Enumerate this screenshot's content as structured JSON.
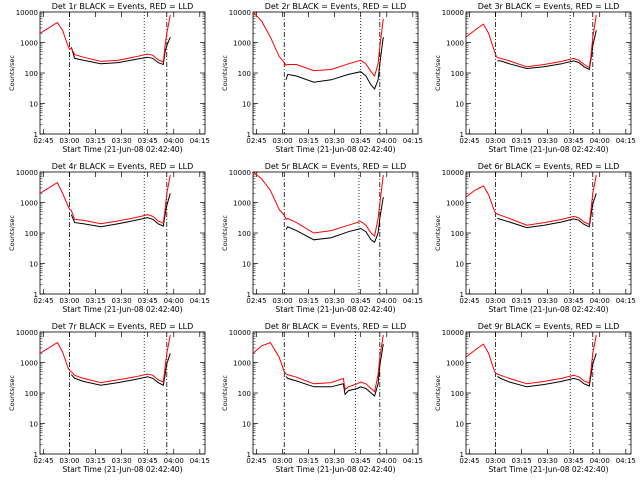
{
  "figure": {
    "xlabel": "Start Time (21-Jun-08 02:42:40)",
    "ylabel": "Counts/sec",
    "x_ticks": [
      "02:45",
      "03:00",
      "03:15",
      "03:30",
      "03:45",
      "04:00",
      "04:15"
    ],
    "y_ticks": [
      "1",
      "10",
      "100",
      "1000",
      "10000"
    ],
    "colors": {
      "events": "#000000",
      "lld": "#ff0000",
      "axes": "#000000",
      "background": "#ffffff"
    }
  },
  "chart_data": [
    {
      "type": "line",
      "title": "Det 1r BLACK = Events, RED = LLD",
      "xlabel": "Start Time (21-Jun-08 02:42:40)",
      "ylabel": "Counts/sec",
      "xlim": [
        0,
        95
      ],
      "ylim": [
        1,
        10000
      ],
      "yscale": "log",
      "x_minutes": [
        0,
        5,
        10,
        13,
        16,
        17,
        18,
        20,
        25,
        35,
        45,
        55,
        62,
        65,
        68,
        71,
        72,
        73,
        75
      ],
      "series": [
        {
          "name": "Events",
          "values": [
            null,
            null,
            null,
            null,
            null,
            null,
            700,
            300,
            260,
            200,
            220,
            280,
            330,
            300,
            220,
            190,
            500,
            800,
            1500
          ]
        },
        {
          "name": "LLD",
          "values": [
            2000,
            3000,
            4500,
            2500,
            800,
            600,
            650,
            400,
            330,
            240,
            260,
            340,
            420,
            380,
            270,
            230,
            800,
            2000,
            8000
          ]
        }
      ],
      "markers": {
        "dashdot": [
          17,
          73
        ],
        "dotted": [
          60
        ]
      }
    },
    {
      "type": "line",
      "title": "Det 2r BLACK = Events, RED = LLD",
      "xlabel": "Start Time (21-Jun-08 02:42:40)",
      "ylabel": "Counts/sec",
      "xlim": [
        0,
        95
      ],
      "ylim": [
        1,
        10000
      ],
      "yscale": "log",
      "x_minutes": [
        0,
        5,
        10,
        15,
        18,
        19,
        20,
        25,
        35,
        45,
        55,
        62,
        65,
        68,
        70,
        72,
        73,
        75
      ],
      "series": [
        {
          "name": "Events",
          "values": [
            null,
            null,
            null,
            null,
            null,
            60,
            90,
            80,
            50,
            60,
            90,
            110,
            80,
            40,
            30,
            60,
            200,
            1500
          ]
        },
        {
          "name": "LLD",
          "values": [
            10000,
            5000,
            1500,
            350,
            220,
            180,
            190,
            190,
            120,
            130,
            200,
            260,
            200,
            110,
            80,
            200,
            700,
            6000
          ]
        }
      ],
      "markers": {
        "dashdot": [
          18,
          73
        ],
        "dotted": [
          62
        ]
      }
    },
    {
      "type": "line",
      "title": "Det 3r BLACK = Events, RED = LLD",
      "xlabel": "Start Time (21-Jun-08 02:42:40)",
      "ylabel": "Counts/sec",
      "xlim": [
        0,
        95
      ],
      "ylim": [
        1,
        10000
      ],
      "yscale": "log",
      "x_minutes": [
        0,
        5,
        10,
        13,
        16,
        17,
        18,
        20,
        25,
        35,
        45,
        55,
        62,
        65,
        68,
        71,
        72,
        73,
        75
      ],
      "series": [
        {
          "name": "Events",
          "values": [
            null,
            null,
            null,
            null,
            null,
            null,
            250,
            250,
            200,
            140,
            160,
            200,
            250,
            220,
            160,
            130,
            300,
            800,
            2500
          ]
        },
        {
          "name": "LLD",
          "values": [
            1500,
            2500,
            4000,
            2000,
            600,
            400,
            320,
            300,
            250,
            160,
            190,
            240,
            300,
            260,
            190,
            150,
            400,
            1500,
            8000
          ]
        }
      ],
      "markers": {
        "dashdot": [
          17,
          73
        ],
        "dotted": [
          60
        ]
      }
    },
    {
      "type": "line",
      "title": "Det 4r BLACK = Events, RED = LLD",
      "xlabel": "Start Time (21-Jun-08 02:42:40)",
      "ylabel": "Counts/sec",
      "xlim": [
        0,
        95
      ],
      "ylim": [
        1,
        10000
      ],
      "yscale": "log",
      "x_minutes": [
        0,
        5,
        10,
        13,
        16,
        17,
        18,
        20,
        25,
        35,
        45,
        55,
        62,
        65,
        68,
        71,
        72,
        73,
        75
      ],
      "series": [
        {
          "name": "Events",
          "values": [
            null,
            null,
            null,
            null,
            null,
            null,
            400,
            220,
            200,
            160,
            200,
            260,
            320,
            280,
            200,
            170,
            400,
            800,
            2000
          ]
        },
        {
          "name": "LLD",
          "values": [
            2000,
            3000,
            4500,
            2000,
            800,
            600,
            550,
            280,
            260,
            200,
            250,
            320,
            400,
            350,
            250,
            210,
            600,
            2000,
            8000
          ]
        }
      ],
      "markers": {
        "dashdot": [
          17,
          73
        ],
        "dotted": [
          60
        ]
      }
    },
    {
      "type": "line",
      "title": "Det 5r BLACK = Events, RED = LLD",
      "xlabel": "Start Time (21-Jun-08 02:42:40)",
      "ylabel": "Counts/sec",
      "xlim": [
        0,
        95
      ],
      "ylim": [
        1,
        10000
      ],
      "yscale": "log",
      "x_minutes": [
        0,
        5,
        10,
        15,
        18,
        19,
        20,
        25,
        35,
        45,
        55,
        62,
        65,
        68,
        70,
        72,
        73,
        75
      ],
      "series": [
        {
          "name": "Events",
          "values": [
            null,
            null,
            null,
            null,
            null,
            130,
            160,
            120,
            60,
            70,
            110,
            140,
            110,
            60,
            50,
            100,
            300,
            1500
          ]
        },
        {
          "name": "LLD",
          "values": [
            10000,
            6000,
            2500,
            600,
            380,
            280,
            300,
            220,
            100,
            120,
            180,
            240,
            180,
            100,
            80,
            300,
            900,
            8000
          ]
        }
      ],
      "markers": {
        "dashdot": [
          18,
          73
        ],
        "dotted": [
          61
        ]
      }
    },
    {
      "type": "line",
      "title": "Det 6r BLACK = Events, RED = LLD",
      "xlabel": "Start Time (21-Jun-08 02:42:40)",
      "ylabel": "Counts/sec",
      "xlim": [
        0,
        95
      ],
      "ylim": [
        1,
        10000
      ],
      "yscale": "log",
      "x_minutes": [
        0,
        5,
        10,
        13,
        16,
        17,
        18,
        20,
        25,
        35,
        45,
        55,
        62,
        65,
        68,
        71,
        72,
        73,
        75
      ],
      "series": [
        {
          "name": "Events",
          "values": [
            null,
            null,
            null,
            null,
            null,
            null,
            300,
            280,
            230,
            150,
            180,
            230,
            290,
            260,
            190,
            160,
            400,
            900,
            2000
          ]
        },
        {
          "name": "LLD",
          "values": [
            1500,
            2500,
            3500,
            1800,
            600,
            450,
            420,
            380,
            300,
            180,
            220,
            280,
            350,
            310,
            230,
            190,
            600,
            2000,
            8000
          ]
        }
      ],
      "markers": {
        "dashdot": [
          17,
          73
        ],
        "dotted": [
          60
        ]
      }
    },
    {
      "type": "line",
      "title": "Det 7r BLACK = Events, RED = LLD",
      "xlabel": "Start Time (21-Jun-08 02:42:40)",
      "ylabel": "Counts/sec",
      "xlim": [
        0,
        95
      ],
      "ylim": [
        1,
        10000
      ],
      "yscale": "log",
      "x_minutes": [
        0,
        5,
        10,
        13,
        16,
        17,
        18,
        20,
        25,
        35,
        45,
        55,
        62,
        65,
        68,
        71,
        72,
        73,
        75
      ],
      "series": [
        {
          "name": "Events",
          "values": [
            null,
            null,
            null,
            null,
            null,
            null,
            400,
            300,
            240,
            180,
            220,
            280,
            340,
            300,
            220,
            180,
            400,
            900,
            2000
          ]
        },
        {
          "name": "LLD",
          "values": [
            2000,
            3000,
            4500,
            2200,
            700,
            550,
            500,
            380,
            300,
            220,
            270,
            340,
            420,
            380,
            270,
            230,
            700,
            2000,
            8000
          ]
        }
      ],
      "markers": {
        "dashdot": [
          17,
          73
        ],
        "dotted": [
          60
        ]
      }
    },
    {
      "type": "line",
      "title": "Det 8r BLACK = Events, RED = LLD",
      "xlabel": "Start Time (21-Jun-08 02:42:40)",
      "ylabel": "Counts/sec",
      "xlim": [
        0,
        95
      ],
      "ylim": [
        1,
        10000
      ],
      "yscale": "log",
      "x_minutes": [
        0,
        5,
        10,
        15,
        18,
        19,
        20,
        25,
        35,
        45,
        52,
        53,
        55,
        60,
        62,
        65,
        68,
        70,
        72,
        73,
        75
      ],
      "series": [
        {
          "name": "Events",
          "values": [
            null,
            null,
            null,
            null,
            null,
            350,
            300,
            250,
            160,
            160,
            200,
            90,
            120,
            140,
            160,
            140,
            100,
            80,
            200,
            800,
            4000
          ]
        },
        {
          "name": "LLD",
          "values": [
            2000,
            3500,
            4500,
            1500,
            500,
            420,
            400,
            330,
            200,
            220,
            300,
            130,
            160,
            200,
            230,
            200,
            140,
            110,
            400,
            1500,
            8000
          ]
        }
      ],
      "markers": {
        "dashdot": [
          18,
          73
        ],
        "dotted": [
          59
        ]
      }
    },
    {
      "type": "line",
      "title": "Det 9r BLACK = Events, RED = LLD",
      "xlabel": "Start Time (21-Jun-08 02:42:40)",
      "ylabel": "Counts/sec",
      "xlim": [
        0,
        95
      ],
      "ylim": [
        1,
        10000
      ],
      "yscale": "log",
      "x_minutes": [
        0,
        5,
        10,
        13,
        16,
        17,
        18,
        20,
        25,
        35,
        45,
        55,
        62,
        65,
        68,
        71,
        72,
        73,
        75
      ],
      "series": [
        {
          "name": "Events",
          "values": [
            null,
            null,
            null,
            null,
            null,
            null,
            350,
            300,
            230,
            160,
            190,
            240,
            300,
            270,
            200,
            170,
            400,
            900,
            2000
          ]
        },
        {
          "name": "LLD",
          "values": [
            1500,
            2500,
            4000,
            2000,
            600,
            450,
            420,
            380,
            300,
            200,
            240,
            300,
            380,
            340,
            250,
            210,
            600,
            2000,
            8000
          ]
        }
      ],
      "markers": {
        "dashdot": [
          17,
          73
        ],
        "dotted": [
          60
        ]
      }
    }
  ]
}
